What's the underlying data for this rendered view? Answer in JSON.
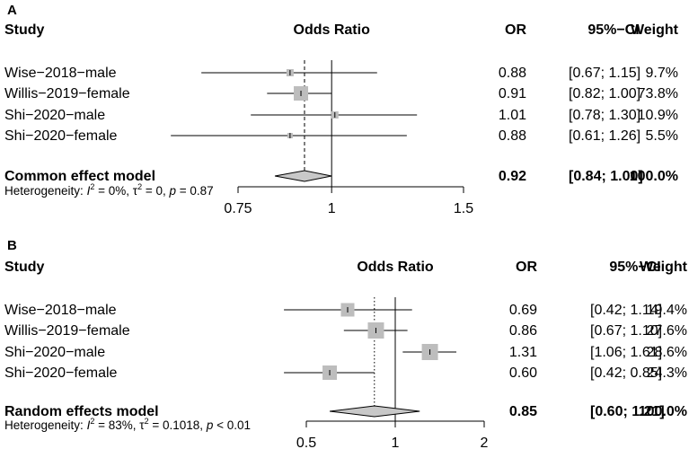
{
  "headers": {
    "study": "Study",
    "axis": "Odds Ratio",
    "or": "OR",
    "ci": "95%−CI",
    "weight": "Weight"
  },
  "panels": [
    {
      "letter": "A",
      "rows": [
        {
          "study": "Wise−2018−male",
          "or": "0.88",
          "ci": "[0.67; 1.15]",
          "weight": "9.7%"
        },
        {
          "study": "Willis−2019−female",
          "or": "0.91",
          "ci": "[0.82; 1.00]",
          "weight": "73.8%"
        },
        {
          "study": "Shi−2020−male",
          "or": "1.01",
          "ci": "[0.78; 1.30]",
          "weight": "10.9%"
        },
        {
          "study": "Shi−2020−female",
          "or": "0.88",
          "ci": "[0.61; 1.26]",
          "weight": "5.5%"
        }
      ],
      "summary": {
        "label": "Common effect model",
        "or": "0.92",
        "ci": "[0.84; 1.00]",
        "weight": "100.0%"
      },
      "heterogeneity": {
        "prefix": "Heterogeneity: ",
        "i2_sym": "I",
        "i2_sup": "2",
        "i2_val": " = 0%, ",
        "tau_sym": "τ",
        "tau_sup": "2",
        "tau_val": " = 0, ",
        "p_sym": "p",
        "p_val": " = 0.87"
      },
      "axis_ticks": [
        "0.75",
        "1",
        "1.5"
      ]
    },
    {
      "letter": "B",
      "rows": [
        {
          "study": "Wise−2018−male",
          "or": "0.69",
          "ci": "[0.42; 1.14]",
          "weight": "19.4%"
        },
        {
          "study": "Willis−2019−female",
          "or": "0.86",
          "ci": "[0.67; 1.10]",
          "weight": "27.6%"
        },
        {
          "study": "Shi−2020−male",
          "or": "1.31",
          "ci": "[1.06; 1.61]",
          "weight": "28.6%"
        },
        {
          "study": "Shi−2020−female",
          "or": "0.60",
          "ci": "[0.42; 0.85]",
          "weight": "24.3%"
        }
      ],
      "summary": {
        "label": "Random effects model",
        "or": "0.85",
        "ci": "[0.60; 1.21]",
        "weight": "100.0%"
      },
      "heterogeneity": {
        "prefix": "Heterogeneity: ",
        "i2_sym": "I",
        "i2_sup": "2",
        "i2_val": " = 83%, ",
        "tau_sym": "τ",
        "tau_sup": "2",
        "tau_val": " = 0.1018, ",
        "p_sym": "p",
        "p_val": " < 0.01"
      },
      "axis_ticks": [
        "0.5",
        "1",
        "2"
      ]
    }
  ],
  "chart_data": [
    {
      "type": "forest",
      "title": "A",
      "xlabel": "Odds Ratio",
      "scale": "log",
      "xlim": [
        0.75,
        1.5
      ],
      "xticks": [
        0.75,
        1,
        1.5
      ],
      "null_value": 1,
      "summary_line": "dashed",
      "studies": [
        {
          "name": "Wise−2018−male",
          "or": 0.88,
          "lower": 0.67,
          "upper": 1.15,
          "weight": 9.7
        },
        {
          "name": "Willis−2019−female",
          "or": 0.91,
          "lower": 0.82,
          "upper": 1.0,
          "weight": 73.8
        },
        {
          "name": "Shi−2020−male",
          "or": 1.01,
          "lower": 0.78,
          "upper": 1.3,
          "weight": 10.9
        },
        {
          "name": "Shi−2020−female",
          "or": 0.88,
          "lower": 0.61,
          "upper": 1.26,
          "weight": 5.5
        }
      ],
      "summary": {
        "name": "Common effect model",
        "or": 0.92,
        "lower": 0.84,
        "upper": 1.0,
        "weight": 100.0
      }
    },
    {
      "type": "forest",
      "title": "B",
      "xlabel": "Odds Ratio",
      "scale": "log",
      "xlim": [
        0.5,
        2
      ],
      "xticks": [
        0.5,
        1,
        2
      ],
      "null_value": 1,
      "summary_line": "dotted",
      "studies": [
        {
          "name": "Wise−2018−male",
          "or": 0.69,
          "lower": 0.42,
          "upper": 1.14,
          "weight": 19.4
        },
        {
          "name": "Willis−2019−female",
          "or": 0.86,
          "lower": 0.67,
          "upper": 1.1,
          "weight": 27.6
        },
        {
          "name": "Shi−2020−male",
          "or": 1.31,
          "lower": 1.06,
          "upper": 1.61,
          "weight": 28.6
        },
        {
          "name": "Shi−2020−female",
          "or": 0.6,
          "lower": 0.42,
          "upper": 0.85,
          "weight": 24.3
        }
      ],
      "summary": {
        "name": "Random effects model",
        "or": 0.85,
        "lower": 0.6,
        "upper": 1.21,
        "weight": 100.0
      }
    }
  ],
  "colors": {
    "box": "#bdbdbd",
    "diamond": "#c8c8c8",
    "line": "#000000"
  }
}
